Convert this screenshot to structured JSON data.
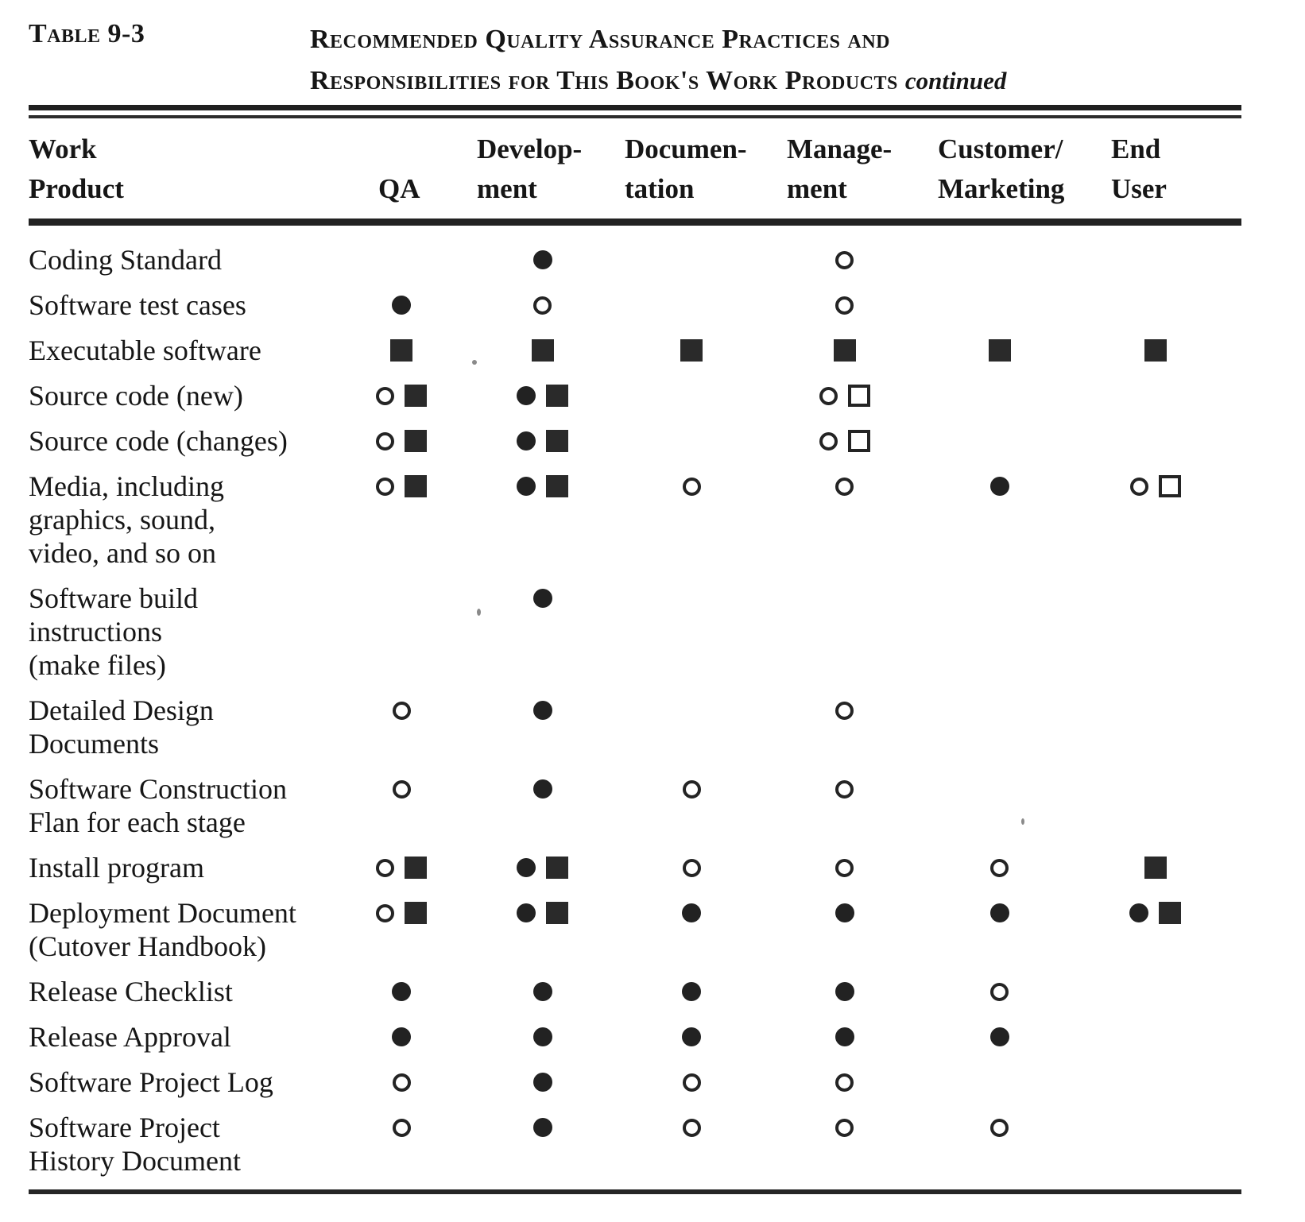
{
  "caption": {
    "label": "Table 9-3",
    "title_line1": "Recommended Quality Assurance Practices and",
    "title_line2": "Responsibilities for This Book's Work Products",
    "continued": "continued"
  },
  "table": {
    "headers": [
      {
        "id": "work_product",
        "lines": [
          "Work",
          "Product"
        ]
      },
      {
        "id": "qa",
        "lines": [
          "",
          "QA"
        ]
      },
      {
        "id": "development",
        "lines": [
          "Develop-",
          "ment"
        ]
      },
      {
        "id": "documentation",
        "lines": [
          "Documen-",
          "tation"
        ]
      },
      {
        "id": "management",
        "lines": [
          "Manage-",
          "ment"
        ]
      },
      {
        "id": "customer_marketing",
        "lines": [
          "Customer/",
          "Marketing"
        ]
      },
      {
        "id": "end_user",
        "lines": [
          "End",
          "User"
        ]
      }
    ],
    "symbol_legend": {
      "filled-circle": "●",
      "open-circle": "○",
      "filled-square": "■",
      "open-square": "□"
    },
    "rows": [
      {
        "product_lines": [
          "Coding Standard"
        ],
        "cells": [
          [],
          [
            "filled-circle"
          ],
          [],
          [
            "open-circle"
          ],
          [],
          []
        ]
      },
      {
        "product_lines": [
          "Software test cases"
        ],
        "cells": [
          [
            "filled-circle"
          ],
          [
            "open-circle"
          ],
          [],
          [
            "open-circle"
          ],
          [],
          []
        ]
      },
      {
        "product_lines": [
          "Executable software"
        ],
        "cells": [
          [
            "filled-square"
          ],
          [
            "filled-square"
          ],
          [
            "filled-square"
          ],
          [
            "filled-square"
          ],
          [
            "filled-square"
          ],
          [
            "filled-square"
          ]
        ]
      },
      {
        "product_lines": [
          "Source code (new)"
        ],
        "cells": [
          [
            "open-circle",
            "filled-square"
          ],
          [
            "filled-circle",
            "filled-square"
          ],
          [],
          [
            "open-circle",
            "open-square"
          ],
          [],
          []
        ]
      },
      {
        "product_lines": [
          "Source code (changes)"
        ],
        "cells": [
          [
            "open-circle",
            "filled-square"
          ],
          [
            "filled-circle",
            "filled-square"
          ],
          [],
          [
            "open-circle",
            "open-square"
          ],
          [],
          []
        ]
      },
      {
        "product_lines": [
          "Media, including",
          "graphics, sound,",
          "video, and so on"
        ],
        "cells": [
          [
            "open-circle",
            "filled-square"
          ],
          [
            "filled-circle",
            "filled-square"
          ],
          [
            "open-circle"
          ],
          [
            "open-circle"
          ],
          [
            "filled-circle"
          ],
          [
            "open-circle",
            "open-square"
          ]
        ]
      },
      {
        "product_lines": [
          "Software  build",
          "instructions",
          "(make files)"
        ],
        "cells": [
          [],
          [
            "filled-circle"
          ],
          [],
          [],
          [],
          []
        ]
      },
      {
        "product_lines": [
          "Detailed  Design",
          "Documents"
        ],
        "cells": [
          [
            "open-circle"
          ],
          [
            "filled-circle"
          ],
          [],
          [
            "open-circle"
          ],
          [],
          []
        ]
      },
      {
        "product_lines": [
          "Software   Construction",
          "Flan for each stage"
        ],
        "cells": [
          [
            "open-circle"
          ],
          [
            "filled-circle"
          ],
          [
            "open-circle"
          ],
          [
            "open-circle"
          ],
          [],
          []
        ]
      },
      {
        "product_lines": [
          "Install program"
        ],
        "cells": [
          [
            "open-circle",
            "filled-square"
          ],
          [
            "filled-circle",
            "filled-square"
          ],
          [
            "open-circle"
          ],
          [
            "open-circle"
          ],
          [
            "open-circle"
          ],
          [
            "filled-square"
          ]
        ]
      },
      {
        "product_lines": [
          "Deployment Document",
          "(Cutover  Handbook)"
        ],
        "cells": [
          [
            "open-circle",
            "filled-square"
          ],
          [
            "filled-circle",
            "filled-square"
          ],
          [
            "filled-circle"
          ],
          [
            "filled-circle"
          ],
          [
            "filled-circle"
          ],
          [
            "filled-circle",
            "filled-square"
          ]
        ]
      },
      {
        "product_lines": [
          "Release  Checklist"
        ],
        "cells": [
          [
            "filled-circle"
          ],
          [
            "filled-circle"
          ],
          [
            "filled-circle"
          ],
          [
            "filled-circle"
          ],
          [
            "open-circle"
          ],
          []
        ]
      },
      {
        "product_lines": [
          "Release   Approval"
        ],
        "cells": [
          [
            "filled-circle"
          ],
          [
            "filled-circle"
          ],
          [
            "filled-circle"
          ],
          [
            "filled-circle"
          ],
          [
            "filled-circle"
          ],
          []
        ]
      },
      {
        "product_lines": [
          "Software  Project Log"
        ],
        "cells": [
          [
            "open-circle"
          ],
          [
            "filled-circle"
          ],
          [
            "open-circle"
          ],
          [
            "open-circle"
          ],
          [],
          []
        ]
      },
      {
        "product_lines": [
          "Software  Project",
          "History Document"
        ],
        "cells": [
          [
            "open-circle"
          ],
          [
            "filled-circle"
          ],
          [
            "open-circle"
          ],
          [
            "open-circle"
          ],
          [
            "open-circle"
          ],
          []
        ]
      }
    ]
  },
  "colors": {
    "ink": "#1c1c1c",
    "paper": "#ffffff"
  }
}
